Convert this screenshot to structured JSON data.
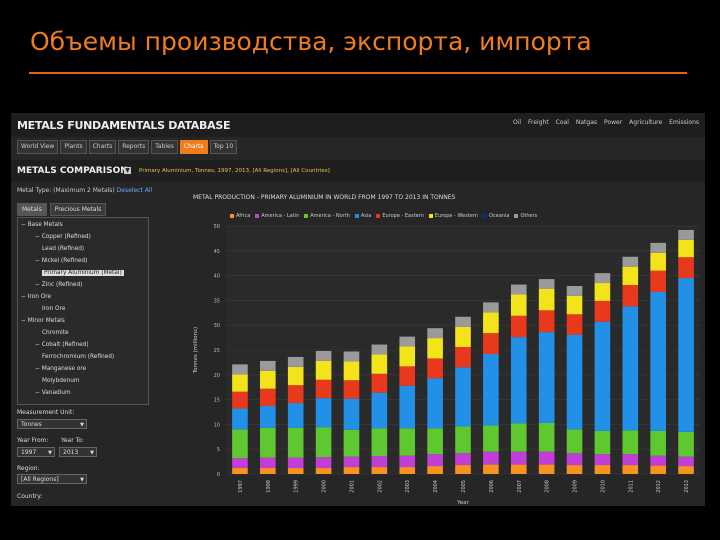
{
  "slide": {
    "title": "Объемы производства, экспорта, импорта",
    "accent": "#f07c1e"
  },
  "app": {
    "brand": "METALS FUNDAMENTALS DATABASE",
    "topnav": [
      "Oil",
      "Freight",
      "Coal",
      "Natgas",
      "Power",
      "Agriculture",
      "Emissions"
    ],
    "tabs": [
      {
        "label": "World View",
        "active": false
      },
      {
        "label": "Plants",
        "active": false
      },
      {
        "label": "Charts",
        "active": false
      },
      {
        "label": "Reports",
        "active": false
      },
      {
        "label": "Tables",
        "active": false
      },
      {
        "label": "Charts",
        "active": true
      },
      {
        "label": "Top 10",
        "active": false
      }
    ],
    "comparison_title": "METALS COMPARISON",
    "comparison_summary": "Primary Aluminium, Tonnes, 1997, 2013, [All Regions], [All Countries]"
  },
  "sidebar": {
    "metal_type_label": "Metal Type: (Maximum 2 Metals)",
    "deselect_all": "Deselect All",
    "tabs": [
      {
        "label": "Metals",
        "active": true
      },
      {
        "label": "Precious Metals",
        "active": false
      }
    ],
    "tree": [
      {
        "label": "Base Metals",
        "indent": 0,
        "toggle": "−",
        "selected": false
      },
      {
        "label": "Copper (Refined)",
        "indent": 2,
        "toggle": "−",
        "selected": false
      },
      {
        "label": "Lead (Refined)",
        "indent": 3,
        "toggle": "",
        "selected": false
      },
      {
        "label": "Nickel (Refined)",
        "indent": 2,
        "toggle": "−",
        "selected": false
      },
      {
        "label": "Primary Aluminium (Metal)",
        "indent": 3,
        "toggle": "",
        "selected": true
      },
      {
        "label": "Zinc (Refined)",
        "indent": 2,
        "toggle": "−",
        "selected": false
      },
      {
        "label": "Iron Ore",
        "indent": 0,
        "toggle": "−",
        "selected": false
      },
      {
        "label": "Iron Ore",
        "indent": 3,
        "toggle": "",
        "selected": false
      },
      {
        "label": "Minor Metals",
        "indent": 0,
        "toggle": "−",
        "selected": false
      },
      {
        "label": "Chromite",
        "indent": 3,
        "toggle": "",
        "selected": false
      },
      {
        "label": "Cobalt (Refined)",
        "indent": 2,
        "toggle": "−",
        "selected": false
      },
      {
        "label": "Ferrochromium (Refined)",
        "indent": 3,
        "toggle": "",
        "selected": false
      },
      {
        "label": "Manganese ore",
        "indent": 2,
        "toggle": "−",
        "selected": false
      },
      {
        "label": "Molybdenum",
        "indent": 3,
        "toggle": "",
        "selected": false
      },
      {
        "label": "Vanadium",
        "indent": 2,
        "toggle": "−",
        "selected": false
      }
    ],
    "measurement_unit_label": "Measurement Unit:",
    "measurement_unit": "Tonnes",
    "year_from_label": "Year From:",
    "year_to_label": "Year To:",
    "year_from": "1997",
    "year_to": "2013",
    "region_label": "Region:",
    "region": "[All Regions]",
    "country_label": "Country:"
  },
  "chart_data": {
    "type": "bar",
    "stacked": true,
    "title": "METAL PRODUCTION - PRIMARY ALUMINIUM IN WORLD FROM 1997 TO 2013 IN TONNES",
    "ylabel": "Tonnes (millions)",
    "xlabel": "Year",
    "ylim": [
      0,
      50
    ],
    "yticks": [
      0,
      5,
      10,
      15,
      20,
      25,
      30,
      35,
      40,
      45,
      50
    ],
    "grid": true,
    "legend_position": "top",
    "categories": [
      "1997",
      "1998",
      "1999",
      "2000",
      "2001",
      "2002",
      "2003",
      "2004",
      "2005",
      "2006",
      "2007",
      "2008",
      "2009",
      "2010",
      "2011",
      "2012",
      "2013"
    ],
    "series": [
      {
        "name": "Africa",
        "color": "#f7931e",
        "values": [
          1.2,
          1.2,
          1.2,
          1.2,
          1.4,
          1.4,
          1.4,
          1.6,
          1.8,
          1.9,
          1.9,
          1.9,
          1.8,
          1.8,
          1.8,
          1.7,
          1.6
        ]
      },
      {
        "name": "America - Latin",
        "color": "#c13fd6",
        "values": [
          2.0,
          2.1,
          2.1,
          2.2,
          2.1,
          2.2,
          2.3,
          2.4,
          2.4,
          2.6,
          2.6,
          2.6,
          2.4,
          2.2,
          2.2,
          2.0,
          1.9
        ]
      },
      {
        "name": "America - North",
        "color": "#5fc72f",
        "values": [
          5.8,
          6.0,
          6.0,
          6.0,
          5.4,
          5.6,
          5.5,
          5.2,
          5.4,
          5.3,
          5.7,
          5.8,
          4.8,
          4.7,
          4.8,
          5.0,
          5.0
        ]
      },
      {
        "name": "Asia",
        "color": "#2390e8",
        "values": [
          4.2,
          4.4,
          5.0,
          5.9,
          6.3,
          7.2,
          8.6,
          10.1,
          11.9,
          14.4,
          17.4,
          18.3,
          19.1,
          22.0,
          25.0,
          28.0,
          31.0
        ]
      },
      {
        "name": "Europe - Eastern",
        "color": "#e8391d",
        "values": [
          3.4,
          3.5,
          3.6,
          3.7,
          3.7,
          3.8,
          3.9,
          4.0,
          4.1,
          4.2,
          4.3,
          4.4,
          4.1,
          4.2,
          4.3,
          4.3,
          4.2
        ]
      },
      {
        "name": "Europe - Western",
        "color": "#f2e31b",
        "values": [
          3.5,
          3.6,
          3.7,
          3.8,
          3.8,
          3.9,
          4.0,
          4.1,
          4.1,
          4.2,
          4.3,
          4.3,
          3.7,
          3.6,
          3.7,
          3.6,
          3.5
        ]
      },
      {
        "name": "Oceania",
        "color": "#0a2f8a",
        "values": [
          0,
          0,
          0,
          0,
          0,
          0,
          0,
          0,
          0,
          0,
          0,
          0,
          0,
          0,
          0,
          0,
          0
        ]
      },
      {
        "name": "Others",
        "color": "#9a9a9a",
        "values": [
          2.0,
          2.0,
          2.0,
          2.0,
          2.0,
          2.0,
          2.0,
          2.0,
          2.0,
          2.0,
          2.0,
          2.0,
          2.0,
          2.0,
          2.0,
          2.0,
          2.0
        ]
      }
    ]
  }
}
